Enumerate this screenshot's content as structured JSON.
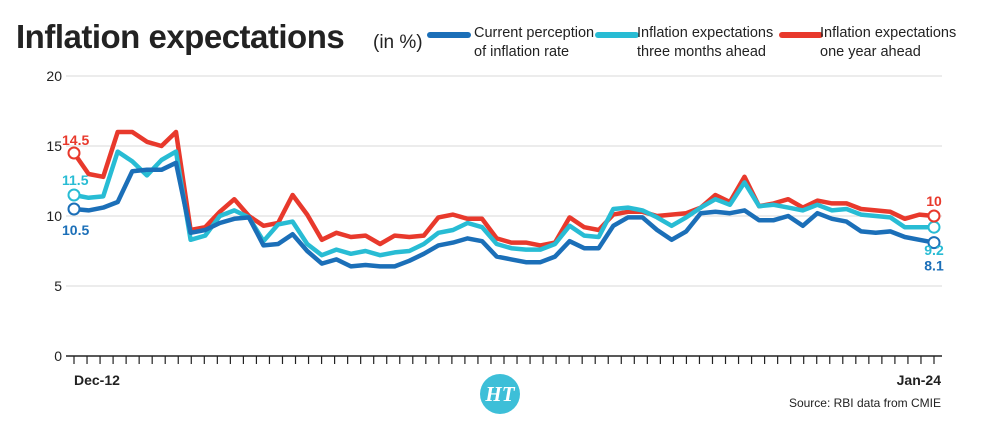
{
  "title": "Inflation expectations",
  "title_unit": "(in %)",
  "source": "Source: RBI data from CMIE",
  "logo": "HT",
  "colors": {
    "current": "#1b6fb8",
    "three_months": "#28bcd4",
    "one_year": "#e8392c",
    "axis": "#222222",
    "grid": "#d8d8d8",
    "logo": "#3dbfd8"
  },
  "chart_data": {
    "type": "line",
    "x_label_start": "Dec-12",
    "x_label_end": "Jan-24",
    "ylim": [
      0,
      20
    ],
    "yticks": [
      0,
      5,
      10,
      15,
      20
    ],
    "grid": true,
    "legend_position": "top",
    "series": [
      {
        "name": "Current perception of inflation rate",
        "key": "current",
        "values": [
          10.5,
          10.4,
          10.6,
          11.0,
          13.2,
          13.3,
          13.3,
          13.8,
          8.8,
          9.0,
          9.5,
          9.8,
          9.9,
          7.9,
          8.0,
          8.7,
          7.5,
          6.6,
          6.9,
          6.4,
          6.5,
          6.4,
          6.4,
          6.8,
          7.3,
          7.9,
          8.1,
          8.4,
          8.2,
          7.1,
          6.9,
          6.7,
          6.7,
          7.1,
          8.2,
          7.7,
          7.7,
          9.3,
          9.9,
          9.9,
          9.0,
          8.3,
          8.9,
          10.2,
          10.3,
          10.2,
          10.4,
          9.7,
          9.7,
          10.0,
          9.3,
          10.2,
          9.8,
          9.6,
          8.9,
          8.8,
          8.9,
          8.5,
          8.3,
          8.1
        ],
        "start_label": "10.5",
        "end_label": "8.1"
      },
      {
        "name": "Inflation expectations three months ahead",
        "key": "three_months",
        "values": [
          11.5,
          11.3,
          11.4,
          14.6,
          13.9,
          12.9,
          14.0,
          14.6,
          8.3,
          8.6,
          10.0,
          10.4,
          9.9,
          8.2,
          9.4,
          9.6,
          8.0,
          7.2,
          7.6,
          7.3,
          7.5,
          7.2,
          7.4,
          7.5,
          8.0,
          8.8,
          9.0,
          9.5,
          9.2,
          8.0,
          7.7,
          7.6,
          7.6,
          8.0,
          9.3,
          8.6,
          8.5,
          10.5,
          10.6,
          10.4,
          9.9,
          9.3,
          9.9,
          10.6,
          11.2,
          10.8,
          12.4,
          10.7,
          10.8,
          10.6,
          10.4,
          10.8,
          10.4,
          10.5,
          10.1,
          10.0,
          9.9,
          9.2,
          9.2,
          9.2
        ],
        "start_label": "11.5",
        "end_label": "9.2"
      },
      {
        "name": "Inflation expectations one year ahead",
        "key": "one_year",
        "values": [
          14.5,
          13.0,
          12.8,
          16.0,
          16.0,
          15.3,
          15.0,
          16.0,
          9.0,
          9.2,
          10.3,
          11.2,
          10.0,
          9.3,
          9.5,
          11.5,
          10.1,
          8.3,
          8.8,
          8.5,
          8.6,
          8.0,
          8.6,
          8.5,
          8.6,
          9.9,
          10.1,
          9.8,
          9.8,
          8.4,
          8.1,
          8.1,
          7.9,
          8.1,
          9.9,
          9.2,
          9.0,
          10.1,
          10.3,
          10.3,
          10.0,
          10.1,
          10.2,
          10.6,
          11.5,
          11.0,
          12.8,
          10.7,
          10.9,
          11.2,
          10.6,
          11.1,
          10.9,
          10.9,
          10.5,
          10.4,
          10.3,
          9.8,
          10.1,
          10.0
        ],
        "start_label": "14.5",
        "end_label": "10"
      }
    ]
  }
}
